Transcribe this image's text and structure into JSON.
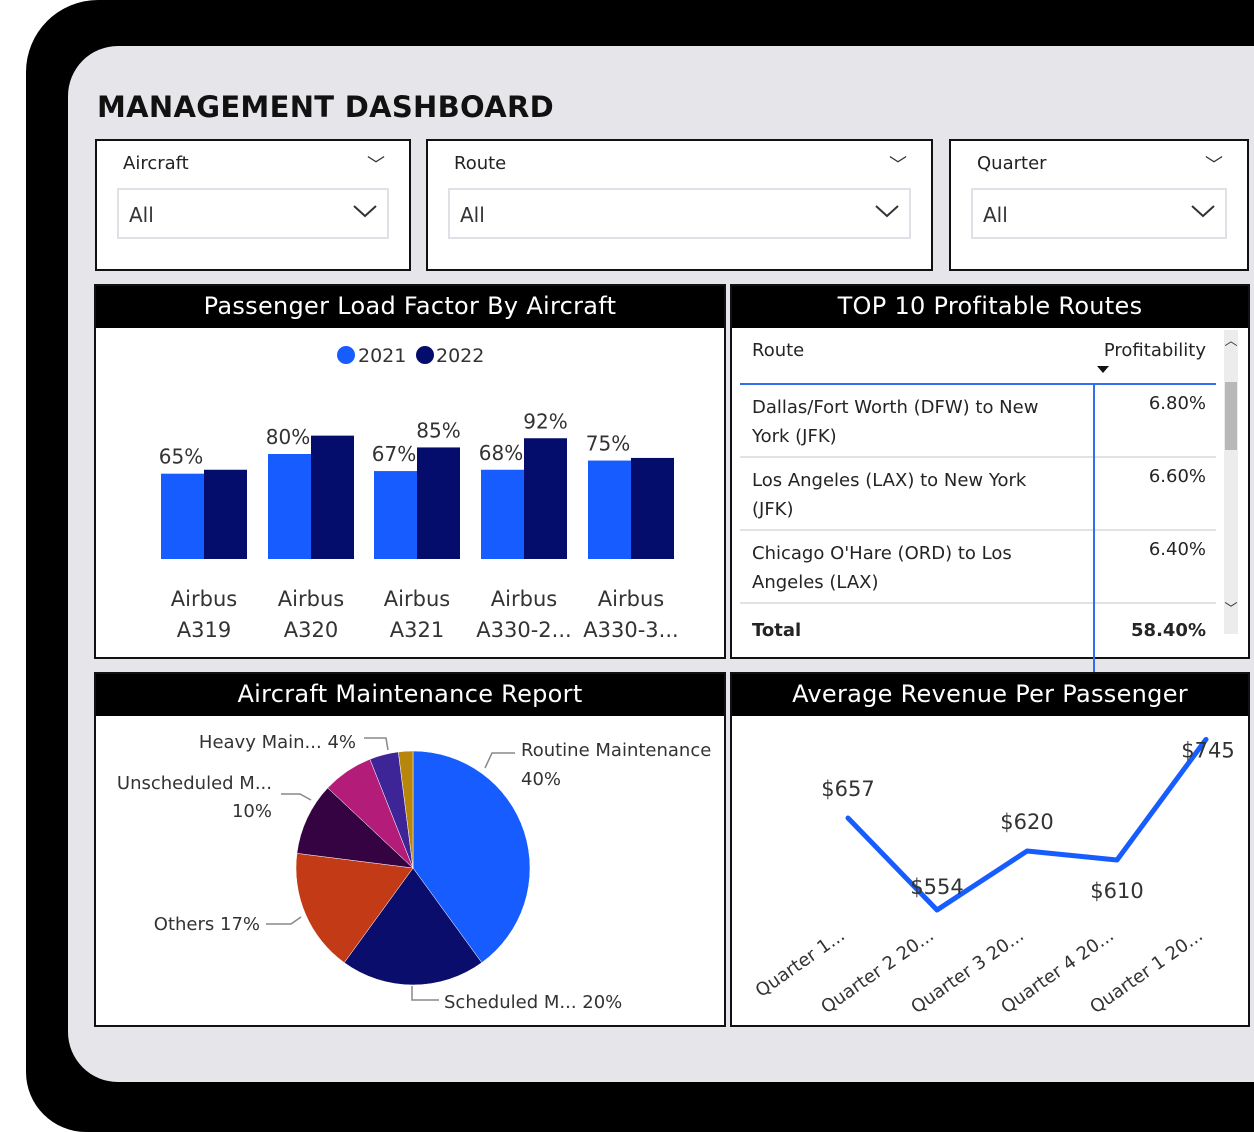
{
  "title": "MANAGEMENT DASHBOARD",
  "slicers": [
    {
      "label": "Aircraft",
      "value": "All"
    },
    {
      "label": "Route",
      "value": "All"
    },
    {
      "label": "Quarter",
      "value": "All"
    }
  ],
  "colors": {
    "series_2021": "#175cff",
    "series_2022": "#040c6c",
    "line": "#175cff"
  },
  "bar_panel_title": "Passenger Load Factor By Aircraft",
  "table_panel_title": "TOP 10 Profitable Routes",
  "pie_panel_title": "Aircraft Maintenance Report",
  "line_panel_title": "Average Revenue Per Passenger",
  "chart_data": [
    {
      "type": "bar",
      "title": "Passenger Load Factor By Aircraft",
      "legend_position": "top-center",
      "categories": [
        "Airbus A319",
        "Airbus A320",
        "Airbus A321",
        "Airbus A330-2...",
        "Airbus A330-3..."
      ],
      "category_lines": [
        [
          "Airbus",
          "A319"
        ],
        [
          "Airbus",
          "A320"
        ],
        [
          "Airbus",
          "A321"
        ],
        [
          "Airbus",
          "A330-2..."
        ],
        [
          "Airbus",
          "A330-3..."
        ]
      ],
      "series": [
        {
          "name": "2021",
          "values": [
            65,
            80,
            67,
            68,
            75
          ],
          "labels_shown": [
            "65%",
            "80%",
            "67%",
            "68%",
            "75%"
          ]
        },
        {
          "name": "2022",
          "values": [
            68,
            94,
            85,
            92,
            77
          ],
          "labels_shown": [
            null,
            null,
            "85%",
            "92%",
            null
          ]
        }
      ],
      "ylim": [
        0,
        100
      ],
      "grid": false
    },
    {
      "type": "pie",
      "title": "Aircraft Maintenance Report",
      "slices": [
        {
          "name": "Routine Maintenance",
          "value": 40,
          "label": [
            "Routine Maintenance",
            "40%"
          ],
          "color": "#175cff"
        },
        {
          "name": "Scheduled M...",
          "value": 20,
          "label": [
            "Scheduled M... 20%"
          ],
          "color": "#0a0d6b"
        },
        {
          "name": "Others",
          "value": 17,
          "label": [
            "Others 17%"
          ],
          "color": "#c23a16"
        },
        {
          "name": "Unscheduled M...",
          "value": 10,
          "label": [
            "Unscheduled M...",
            "10%"
          ],
          "color": "#360342"
        },
        {
          "name": "",
          "value": 7,
          "label": [],
          "color": "#b41c79"
        },
        {
          "name": "Heavy Main...",
          "value": 4,
          "label": [
            "Heavy Main... 4%"
          ],
          "color": "#3d2497"
        },
        {
          "name": "",
          "value": 2,
          "label": [],
          "color": "#b8860b"
        }
      ]
    },
    {
      "type": "line",
      "title": "Average Revenue Per Passenger",
      "categories": [
        "Quarter 1...",
        "Quarter 2 20...",
        "Quarter 3 20...",
        "Quarter 4 20...",
        "Quarter 1 20..."
      ],
      "values": [
        657,
        554,
        620,
        610,
        745
      ],
      "data_labels": [
        "$657",
        "$554",
        "$620",
        "$610",
        "$745"
      ]
    }
  ],
  "table": {
    "columns": [
      "Route",
      "Profitability"
    ],
    "rows": [
      {
        "route": "Dallas/Fort Worth (DFW) to New York (JFK)",
        "profitability": "6.80%"
      },
      {
        "route": "Los Angeles (LAX) to New York (JFK)",
        "profitability": "6.60%"
      },
      {
        "route": "Chicago O'Hare (ORD) to Los Angeles (LAX)",
        "profitability": "6.40%"
      }
    ],
    "total_label": "Total",
    "total_value": "58.40%"
  }
}
